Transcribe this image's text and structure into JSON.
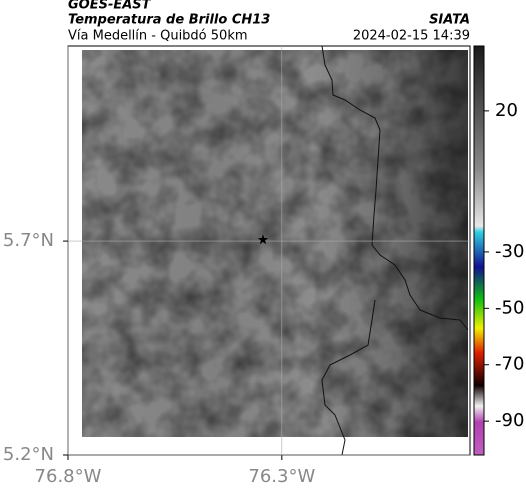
{
  "header": {
    "source": "GOES-EAST",
    "title": "Temperatura de Brillo CH13",
    "brand": "SIATA",
    "subtitle": "Vía Medellín - Quibdó 50km",
    "timestamp": "2024-02-15 14:39"
  },
  "map": {
    "xlim": [
      -76.8,
      -75.86
    ],
    "ylim": [
      5.2,
      6.156
    ],
    "xticks": [
      {
        "value": -76.8,
        "label": "76.8°W"
      },
      {
        "value": -76.3,
        "label": "76.3°W"
      }
    ],
    "yticks": [
      {
        "value": 5.2,
        "label": "5.2°N"
      },
      {
        "value": 5.7,
        "label": "5.7°N"
      }
    ],
    "grid": true,
    "marker": {
      "lon": -76.344,
      "lat": 5.703
    }
  },
  "colorbar": {
    "clim": [
      -102,
      43
    ],
    "ticks": [
      20,
      -30,
      -50,
      -70,
      -90
    ]
  }
}
